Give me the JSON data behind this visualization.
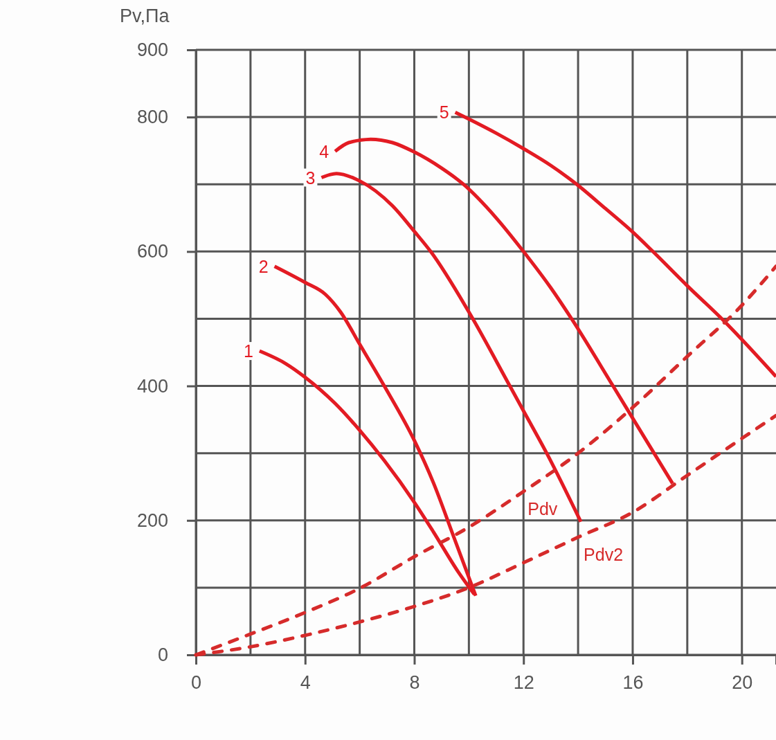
{
  "chart_data": {
    "type": "line",
    "ylabel": "Pv,Па",
    "xlim": [
      0,
      21.25
    ],
    "ylim": [
      0,
      900
    ],
    "xticks": [
      0,
      {
        "value": 2,
        "label": null
      },
      4,
      {
        "value": 6,
        "label": null
      },
      8,
      {
        "value": 10,
        "label": null
      },
      12,
      {
        "value": 14,
        "label": null
      },
      16,
      {
        "value": 18,
        "label": null
      },
      20
    ],
    "yticks": [
      0,
      {
        "value": 100,
        "label": null
      },
      200,
      {
        "value": 300,
        "label": null
      },
      400,
      {
        "value": 500,
        "label": null
      },
      600,
      {
        "value": 700,
        "label": null
      },
      800,
      900
    ],
    "grid": true,
    "legend": false,
    "marker": "none",
    "series": [
      {
        "name": "1",
        "color": "#e31b23",
        "line_style": "solid",
        "x": [
          2.33,
          3.3,
          4,
          5.1,
          6,
          6.9,
          8,
          8.7,
          9.6,
          10.2
        ],
        "values": [
          452,
          433,
          413,
          374,
          334,
          289,
          227,
          183,
          124,
          90
        ]
      },
      {
        "name": "2",
        "color": "#e31b23",
        "line_style": "solid",
        "x": [
          2.88,
          4,
          4.75,
          5.3,
          6,
          6.9,
          8,
          8.7,
          9.45,
          10.25
        ],
        "values": [
          578,
          554,
          536,
          510,
          462,
          400,
          319,
          256,
          175,
          88
        ]
      },
      {
        "name": "3",
        "color": "#e31b23",
        "line_style": "solid",
        "x": [
          4.6,
          5.15,
          6,
          7.2,
          8,
          8.6,
          10,
          11.5,
          12,
          12.85,
          14.1
        ],
        "values": [
          710,
          716,
          705,
          668,
          630,
          600,
          510,
          400,
          363,
          300,
          198
        ]
      },
      {
        "name": "4",
        "color": "#e31b23",
        "line_style": "solid",
        "x": [
          5.1,
          5.6,
          6.4,
          7.2,
          8,
          9,
          9.8,
          11,
          12,
          13,
          13.76,
          15.28,
          16,
          17.46
        ],
        "values": [
          749,
          762,
          767,
          762,
          748,
          724,
          700,
          650,
          600,
          546,
          500,
          400,
          352,
          255
        ]
      },
      {
        "name": "5",
        "color": "#e31b23",
        "line_style": "solid",
        "x": [
          9.5,
          10,
          11,
          12,
          13,
          13.95,
          15,
          16,
          16.74,
          18,
          19.36,
          20,
          21.25
        ],
        "values": [
          807,
          797,
          776,
          753,
          728,
          700,
          664,
          629,
          600,
          549,
          496,
          469,
          414
        ]
      },
      {
        "name": "Pdv",
        "color": "#d62b2b",
        "line_style": "dashed",
        "x": [
          0,
          2,
          4,
          6,
          8,
          10,
          12,
          14,
          16,
          18,
          20,
          21.25
        ],
        "values": [
          0,
          31,
          63,
          99,
          146,
          190,
          243,
          300,
          368,
          444,
          520,
          578
        ]
      },
      {
        "name": "Pdv2",
        "color": "#d62b2b",
        "line_style": "dashed",
        "x": [
          0,
          2,
          4,
          6,
          8,
          10,
          12,
          14,
          16,
          18,
          20,
          21.25
        ],
        "values": [
          0,
          12,
          29,
          49,
          72,
          100,
          137,
          175,
          212,
          267,
          322,
          356
        ]
      }
    ]
  }
}
